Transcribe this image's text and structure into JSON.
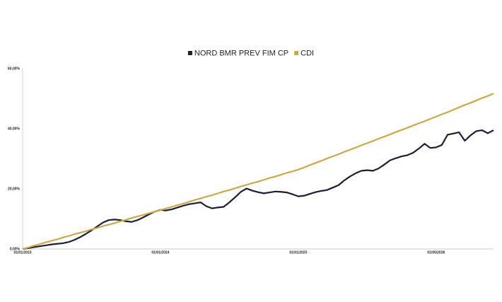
{
  "chart_data": {
    "type": "line",
    "categories": [
      "01/01/2023",
      null,
      null,
      null,
      null,
      null,
      null,
      null,
      null,
      null,
      null,
      null,
      null,
      null,
      null,
      null,
      null,
      null,
      null,
      null,
      null,
      null,
      null,
      null,
      "01/01/2024",
      null,
      null,
      null,
      null,
      null,
      null,
      null,
      null,
      null,
      null,
      null,
      null,
      null,
      null,
      null,
      null,
      null,
      null,
      null,
      null,
      null,
      null,
      null,
      "01/01/2025",
      null,
      null,
      null,
      null,
      null,
      null,
      null,
      null,
      null,
      null,
      null,
      null,
      null,
      null,
      null,
      null,
      null,
      null,
      null,
      null,
      null,
      null,
      null,
      "01/05/2026",
      null,
      null,
      null,
      null,
      null,
      null,
      null,
      null,
      null,
      null
    ],
    "series": [
      {
        "name": "NORD BMR PREV FIM CP",
        "color": "#1c1f33",
        "values": [
          0,
          0.3,
          0.6,
          0.9,
          1.2,
          1.5,
          1.7,
          1.9,
          2.3,
          3.0,
          3.9,
          5.0,
          6.2,
          7.5,
          8.8,
          9.6,
          9.8,
          9.6,
          9.2,
          9.0,
          9.6,
          10.5,
          11.5,
          12.4,
          13.0,
          12.8,
          13.2,
          13.8,
          14.4,
          14.9,
          15.2,
          15.5,
          14.2,
          13.5,
          13.8,
          14.0,
          15.5,
          17.2,
          19.0,
          20.1,
          19.4,
          18.9,
          18.5,
          18.8,
          19.1,
          19.0,
          18.8,
          18.2,
          17.5,
          17.7,
          18.3,
          18.9,
          19.3,
          19.6,
          20.4,
          21.2,
          22.8,
          24.1,
          25.2,
          26.0,
          26.2,
          26.0,
          26.8,
          28.1,
          29.5,
          30.2,
          30.8,
          31.2,
          32.0,
          33.4,
          35.0,
          33.6,
          33.8,
          34.6,
          38.0,
          38.4,
          38.8,
          36.0,
          37.8,
          39.2,
          39.5,
          38.5,
          39.5
        ]
      },
      {
        "name": "CDI",
        "color": "#c9a94a",
        "values": [
          0,
          0.5,
          1.1,
          1.6,
          2.2,
          2.7,
          3.2,
          3.8,
          4.3,
          4.9,
          5.4,
          5.9,
          6.5,
          7.0,
          7.6,
          8.1,
          8.6,
          9.2,
          9.7,
          10.3,
          10.8,
          11.3,
          11.9,
          12.4,
          12.9,
          13.5,
          14.0,
          14.6,
          15.1,
          15.7,
          16.3,
          16.8,
          17.4,
          17.9,
          18.5,
          19.1,
          19.6,
          20.2,
          20.8,
          21.3,
          21.9,
          22.4,
          23.0,
          23.6,
          24.1,
          24.7,
          25.3,
          25.8,
          26.4,
          27.1,
          27.9,
          28.6,
          29.3,
          30.1,
          30.8,
          31.5,
          32.3,
          33.0,
          33.7,
          34.5,
          35.2,
          35.9,
          36.7,
          37.4,
          38.1,
          38.9,
          39.6,
          40.3,
          41.1,
          41.8,
          42.5,
          43.3,
          44.0,
          44.8,
          45.5,
          46.3,
          47.1,
          47.9,
          48.6,
          49.4,
          50.2,
          50.9,
          51.7
        ]
      }
    ],
    "ylim": [
      0,
      60
    ],
    "yticks": [
      {
        "value": 0,
        "label": "0,00%"
      },
      {
        "value": 20,
        "label": "20,00%"
      },
      {
        "value": 40,
        "label": "40,00%"
      },
      {
        "value": 60,
        "label": "60,00%"
      }
    ],
    "grid": false,
    "legend": "top"
  }
}
